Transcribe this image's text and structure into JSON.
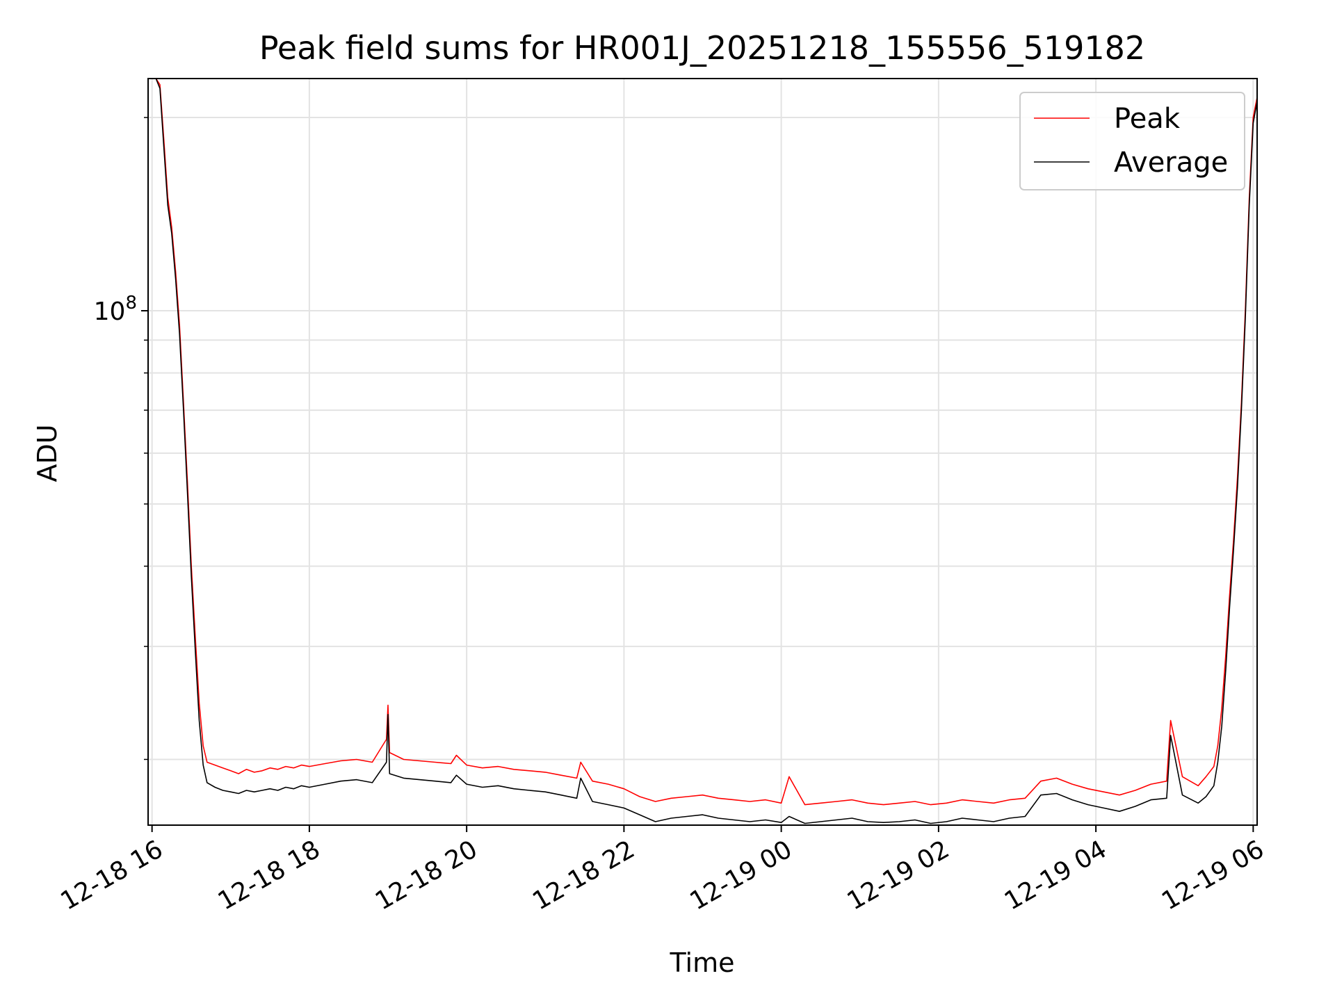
{
  "chart_data": {
    "type": "line",
    "title": "Peak field sums for HR001J_20251218_155556_519182",
    "xlabel": "Time",
    "ylabel": "ADU",
    "yscale": "log",
    "ylim": [
      15800000,
      230000000
    ],
    "xlim_hours": [
      -0.05,
      14.05
    ],
    "grid": true,
    "legend_position": "top-right",
    "x_ticks": [
      {
        "label": "12-18 16",
        "hours": 0
      },
      {
        "label": "12-18 18",
        "hours": 2
      },
      {
        "label": "12-18 20",
        "hours": 4
      },
      {
        "label": "12-18 22",
        "hours": 6
      },
      {
        "label": "12-19 00",
        "hours": 8
      },
      {
        "label": "12-19 02",
        "hours": 10
      },
      {
        "label": "12-19 04",
        "hours": 12
      },
      {
        "label": "12-19 06",
        "hours": 14
      }
    ],
    "y_tick_major": {
      "base": "10",
      "exponent": "8",
      "value": 100000000
    },
    "y_minor_values": [
      20000000,
      30000000,
      40000000,
      50000000,
      60000000,
      70000000,
      80000000,
      90000000,
      200000000
    ],
    "series": [
      {
        "name": "Peak",
        "color": "#ff0000",
        "x_hours": [
          0.0,
          0.05,
          0.1,
          0.15,
          0.2,
          0.25,
          0.3,
          0.35,
          0.4,
          0.45,
          0.5,
          0.55,
          0.6,
          0.65,
          0.7,
          0.8,
          0.9,
          1.0,
          1.1,
          1.2,
          1.3,
          1.4,
          1.5,
          1.6,
          1.7,
          1.8,
          1.9,
          2.0,
          2.2,
          2.4,
          2.6,
          2.8,
          2.98,
          3.0,
          3.02,
          3.2,
          3.4,
          3.6,
          3.8,
          3.87,
          4.0,
          4.2,
          4.4,
          4.6,
          4.8,
          5.0,
          5.2,
          5.4,
          5.45,
          5.6,
          5.8,
          6.0,
          6.2,
          6.4,
          6.6,
          6.8,
          7.0,
          7.2,
          7.4,
          7.6,
          7.8,
          8.0,
          8.1,
          8.3,
          8.5,
          8.7,
          8.9,
          9.1,
          9.3,
          9.5,
          9.7,
          9.9,
          10.1,
          10.3,
          10.5,
          10.7,
          10.9,
          11.1,
          11.3,
          11.5,
          11.7,
          11.9,
          12.1,
          12.3,
          12.5,
          12.7,
          12.9,
          12.95,
          13.1,
          13.3,
          13.4,
          13.5,
          13.55,
          13.6,
          13.65,
          13.7,
          13.75,
          13.8,
          13.85,
          13.9,
          13.95,
          14.0,
          14.05
        ],
        "values": [
          230000000,
          230000000,
          225000000,
          185000000,
          150000000,
          135000000,
          115000000,
          95000000,
          72000000,
          54000000,
          40000000,
          31000000,
          24500000,
          21000000,
          19800000,
          19600000,
          19400000,
          19200000,
          19000000,
          19300000,
          19100000,
          19200000,
          19400000,
          19300000,
          19500000,
          19400000,
          19600000,
          19500000,
          19700000,
          19900000,
          20000000,
          19800000,
          21500000,
          24300000,
          20500000,
          20000000,
          19900000,
          19800000,
          19700000,
          20300000,
          19600000,
          19400000,
          19500000,
          19300000,
          19200000,
          19100000,
          18900000,
          18700000,
          19800000,
          18500000,
          18300000,
          18000000,
          17500000,
          17200000,
          17400000,
          17500000,
          17600000,
          17400000,
          17300000,
          17200000,
          17300000,
          17100000,
          18800000,
          17000000,
          17100000,
          17200000,
          17300000,
          17100000,
          17000000,
          17100000,
          17200000,
          17000000,
          17100000,
          17300000,
          17200000,
          17100000,
          17300000,
          17400000,
          18500000,
          18700000,
          18300000,
          18000000,
          17800000,
          17600000,
          17900000,
          18300000,
          18500000,
          23000000,
          18800000,
          18200000,
          18800000,
          19500000,
          21000000,
          24000000,
          29000000,
          36000000,
          44000000,
          55000000,
          72000000,
          100000000,
          150000000,
          200000000,
          215000000
        ]
      },
      {
        "name": "Average",
        "color": "#000000",
        "x_hours": [
          0.0,
          0.05,
          0.1,
          0.15,
          0.2,
          0.25,
          0.3,
          0.35,
          0.4,
          0.45,
          0.5,
          0.55,
          0.6,
          0.65,
          0.7,
          0.8,
          0.9,
          1.0,
          1.1,
          1.2,
          1.3,
          1.4,
          1.5,
          1.6,
          1.7,
          1.8,
          1.9,
          2.0,
          2.2,
          2.4,
          2.6,
          2.8,
          2.98,
          3.0,
          3.02,
          3.2,
          3.4,
          3.6,
          3.8,
          3.87,
          4.0,
          4.2,
          4.4,
          4.6,
          4.8,
          5.0,
          5.2,
          5.4,
          5.45,
          5.6,
          5.8,
          6.0,
          6.2,
          6.4,
          6.6,
          6.8,
          7.0,
          7.2,
          7.4,
          7.6,
          7.8,
          8.0,
          8.1,
          8.3,
          8.5,
          8.7,
          8.9,
          9.1,
          9.3,
          9.5,
          9.7,
          9.9,
          10.1,
          10.3,
          10.5,
          10.7,
          10.9,
          11.1,
          11.3,
          11.5,
          11.7,
          11.9,
          12.1,
          12.3,
          12.5,
          12.7,
          12.9,
          12.95,
          13.1,
          13.3,
          13.4,
          13.5,
          13.55,
          13.6,
          13.65,
          13.7,
          13.75,
          13.8,
          13.85,
          13.9,
          13.95,
          14.0,
          14.05
        ],
        "values": [
          230000000,
          230000000,
          222000000,
          180000000,
          146000000,
          132000000,
          112000000,
          92000000,
          70000000,
          52000000,
          38500000,
          29500000,
          23000000,
          19600000,
          18400000,
          18100000,
          17900000,
          17800000,
          17700000,
          17900000,
          17800000,
          17900000,
          18000000,
          17900000,
          18100000,
          18000000,
          18200000,
          18100000,
          18300000,
          18500000,
          18600000,
          18400000,
          19800000,
          23500000,
          19000000,
          18700000,
          18600000,
          18500000,
          18400000,
          18900000,
          18300000,
          18100000,
          18200000,
          18000000,
          17900000,
          17800000,
          17600000,
          17400000,
          18700000,
          17200000,
          17000000,
          16800000,
          16400000,
          16000000,
          16200000,
          16300000,
          16400000,
          16200000,
          16100000,
          16000000,
          16100000,
          15950000,
          16300000,
          15900000,
          16000000,
          16100000,
          16200000,
          16000000,
          15950000,
          16000000,
          16100000,
          15900000,
          16000000,
          16200000,
          16100000,
          16000000,
          16200000,
          16300000,
          17600000,
          17700000,
          17300000,
          17000000,
          16800000,
          16600000,
          16900000,
          17300000,
          17400000,
          21800000,
          17600000,
          17100000,
          17500000,
          18200000,
          19800000,
          22500000,
          27500000,
          34500000,
          42500000,
          53000000,
          70000000,
          97000000,
          146000000,
          196000000,
          212000000
        ]
      }
    ]
  }
}
